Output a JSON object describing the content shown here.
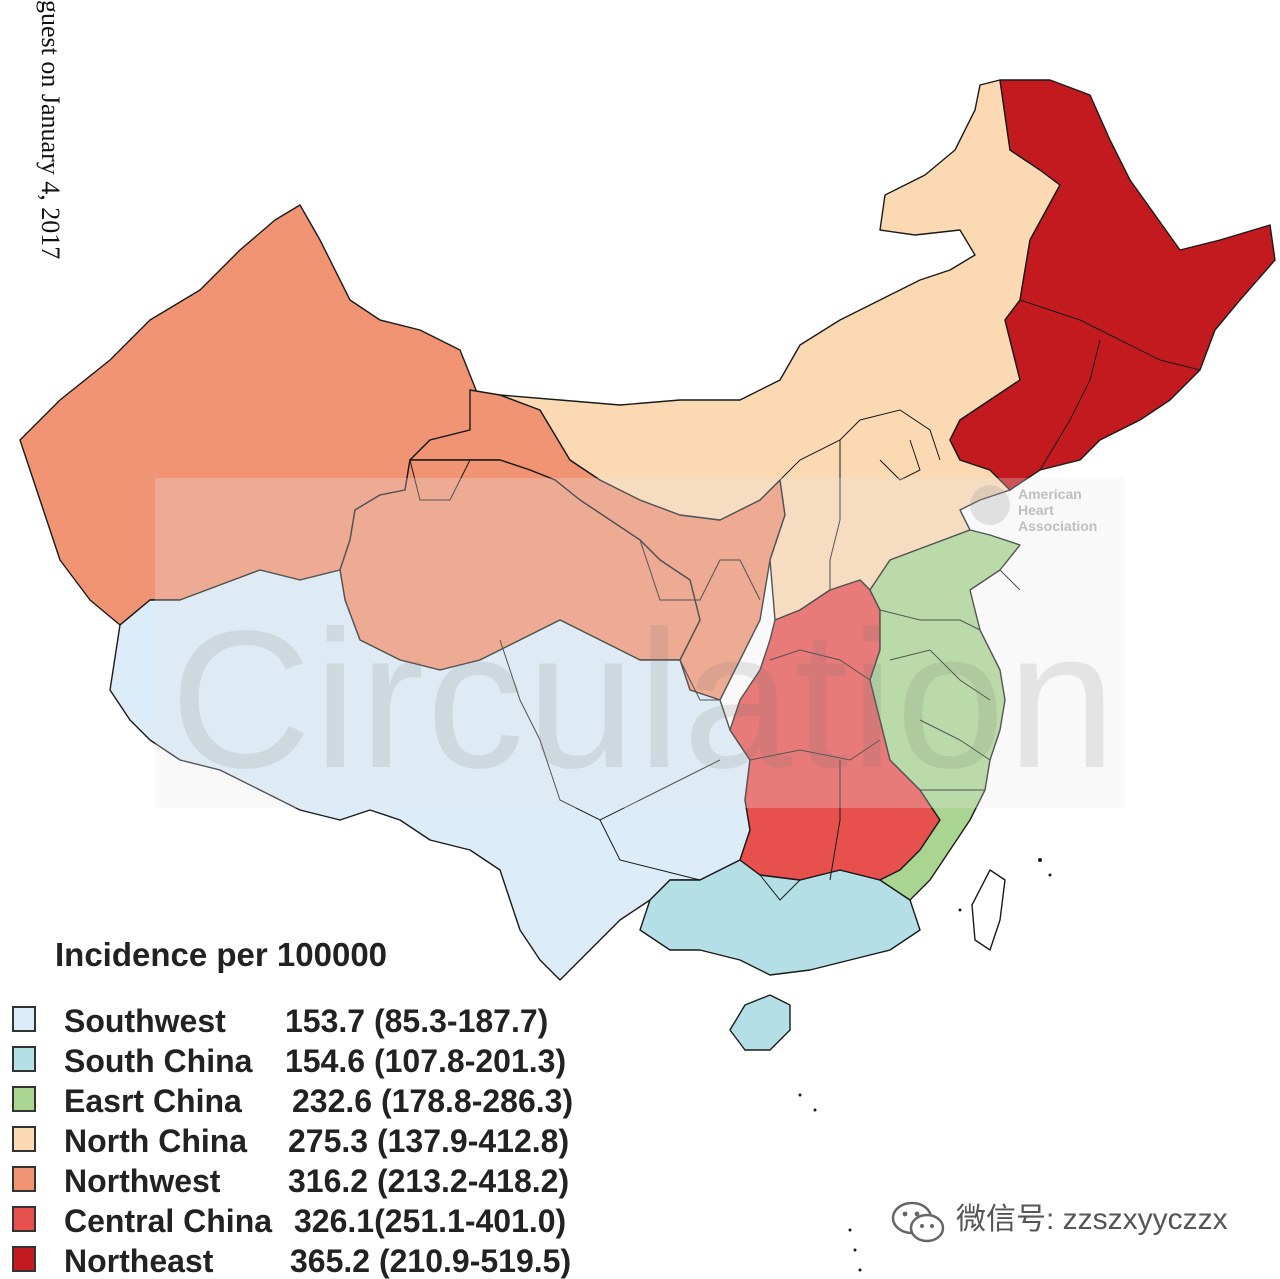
{
  "side_note": "guest on January 4, 2017",
  "watermark": {
    "word": "Circulation",
    "logo_lines": [
      "American",
      "Heart",
      "Association"
    ]
  },
  "legend": {
    "title": "Incidence per 100000",
    "items": [
      {
        "name": "Southwest",
        "value": "153.7 (85.3-187.7)",
        "color": "#dcecf8"
      },
      {
        "name": "South China",
        "value": "154.6 (107.8-201.3)",
        "color": "#b5dfe6"
      },
      {
        "name": "Easrt China",
        "value": "232.6 (178.8-286.3)",
        "color": "#a9d590"
      },
      {
        "name": "North China",
        "value": "275.3 (137.9-412.8)",
        "color": "#fbd9b3"
      },
      {
        "name": "Northwest",
        "value": "316.2 (213.2-418.2)",
        "color": "#f09474"
      },
      {
        "name": "Central China",
        "value": "326.1(251.1-401.0)",
        "color": "#e8504e"
      },
      {
        "name": "Northeast",
        "value": "365.2 (210.9-519.5)",
        "color": "#c21a1e"
      }
    ]
  },
  "credit": {
    "label": "微信号: zzszxyyczzx",
    "icon": "wechat-icon"
  }
}
